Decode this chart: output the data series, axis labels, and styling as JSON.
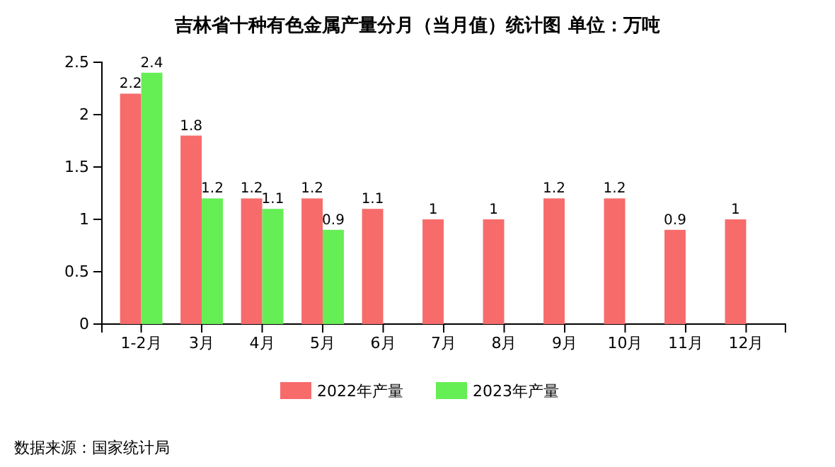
{
  "chart_data": {
    "type": "bar",
    "title": "吉林省十种有色金属产量分月（当月值）统计图 单位：万吨",
    "categories": [
      "1-2月",
      "3月",
      "4月",
      "5月",
      "6月",
      "7月",
      "8月",
      "9月",
      "10月",
      "11月",
      "12月"
    ],
    "series": [
      {
        "name": "2022年产量",
        "color": "#f76b6b",
        "values": [
          2.2,
          1.8,
          1.2,
          1.2,
          1.1,
          1,
          1,
          1.2,
          1.2,
          0.9,
          1
        ]
      },
      {
        "name": "2023年产量",
        "color": "#66ee55",
        "values": [
          2.4,
          1.2,
          1.1,
          0.9,
          null,
          null,
          null,
          null,
          null,
          null,
          null
        ]
      }
    ],
    "ylim": [
      0,
      2.5
    ],
    "yticks": [
      0,
      0.5,
      1,
      1.5,
      2,
      2.5
    ],
    "grid": false,
    "legend": "bottom",
    "data_labels": true,
    "annotations": [
      "数据来源：国家统计局"
    ]
  }
}
